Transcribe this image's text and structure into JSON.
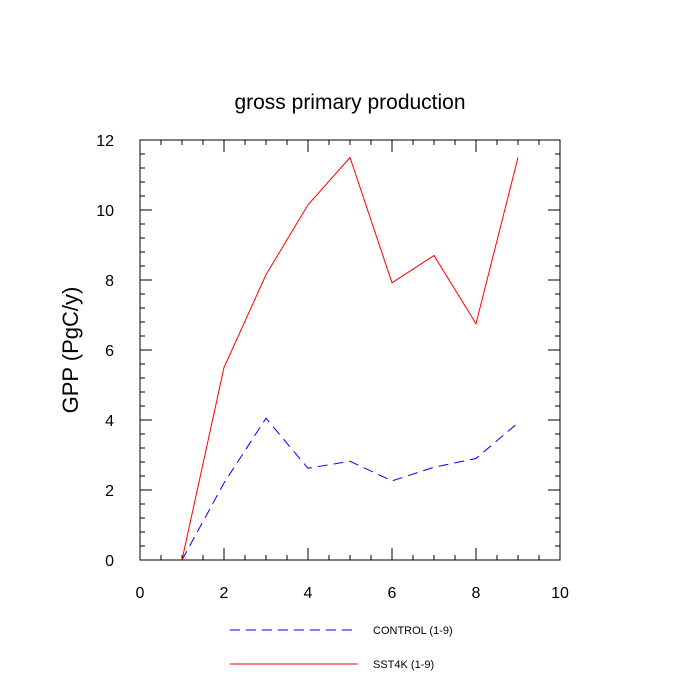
{
  "chart_data": {
    "type": "line",
    "title": "gross primary production",
    "xlabel": "",
    "ylabel": "GPP  (PgC/y)",
    "xlim": [
      0,
      10
    ],
    "ylim": [
      0,
      12
    ],
    "x_ticks": [
      "0",
      "2",
      "4",
      "6",
      "8",
      "10"
    ],
    "y_ticks": [
      "0",
      "2",
      "4",
      "6",
      "8",
      "10",
      "12"
    ],
    "grid": false,
    "legend_position": "bottom",
    "x": [
      1,
      2,
      3,
      4,
      5,
      6,
      7,
      8,
      9
    ],
    "series": [
      {
        "name": "CONTROL (1-9)",
        "color": "#0000ff",
        "dash": "dashed",
        "values": [
          0.0,
          2.2,
          4.05,
          2.62,
          2.82,
          2.26,
          2.65,
          2.9,
          3.92
        ]
      },
      {
        "name": "SST4K (1-9)",
        "color": "#ff0000",
        "dash": "solid",
        "values": [
          0.0,
          5.5,
          8.15,
          10.15,
          11.5,
          7.92,
          8.7,
          6.75,
          11.5
        ]
      }
    ]
  }
}
